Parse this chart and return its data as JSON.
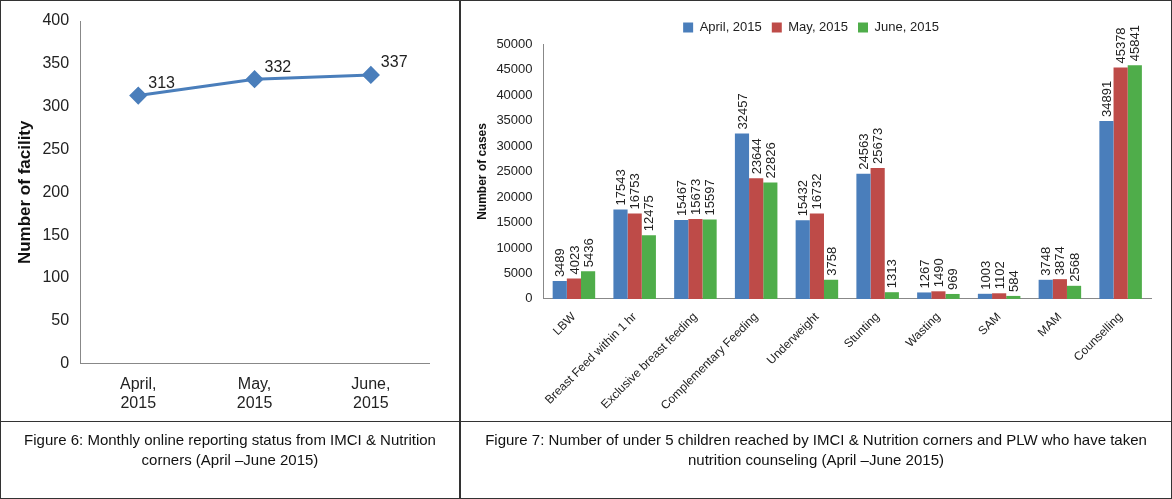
{
  "chart_data": [
    {
      "type": "line",
      "ylabel": "Number of facility",
      "categories": [
        "April, 2015",
        "May, 2015",
        "June, 2015"
      ],
      "series": [
        {
          "color": "#4a7ebb",
          "values": [
            313,
            332,
            337
          ]
        }
      ],
      "ylim": [
        0,
        400
      ],
      "yticks": [
        0,
        50,
        100,
        150,
        200,
        250,
        300,
        350,
        400
      ],
      "grid": false,
      "legend": false,
      "marker": "diamond",
      "line_style": "solid",
      "data_labels": true,
      "annotations": [
        "Figure 6: Monthly online reporting status from IMCI & Nutrition corners (April –June 2015)"
      ]
    },
    {
      "type": "bar",
      "ylabel": "Number of cases",
      "categories": [
        "LBW",
        "Breast Feed within 1 hr",
        "Exclusive breast feeding",
        "Complementary Feeding",
        "Underweight",
        "Stunting",
        "Wasting",
        "SAM",
        "MAM",
        "Counselling"
      ],
      "series": [
        {
          "name": "April, 2015",
          "color": "#4a7ebb",
          "values": [
            3489,
            17543,
            15467,
            32457,
            15432,
            24563,
            1267,
            1003,
            3748,
            34891
          ]
        },
        {
          "name": "May, 2015",
          "color": "#be4b48",
          "values": [
            4023,
            16753,
            15673,
            23644,
            16732,
            25673,
            1490,
            1102,
            3874,
            45378
          ]
        },
        {
          "name": "June, 2015",
          "color": "#4fad4a",
          "values": [
            5436,
            12475,
            15597,
            22826,
            3758,
            1313,
            969,
            584,
            2568,
            45841
          ]
        }
      ],
      "ylim": [
        0,
        50000
      ],
      "yticks": [
        0,
        5000,
        10000,
        15000,
        20000,
        25000,
        30000,
        35000,
        40000,
        45000,
        50000
      ],
      "grid": false,
      "legend": "top",
      "data_labels": true,
      "annotations": [
        "Figure 7: Number of under 5 children reached by IMCI & Nutrition corners and PLW  who have taken nutrition counseling (April –June 2015)"
      ]
    }
  ]
}
